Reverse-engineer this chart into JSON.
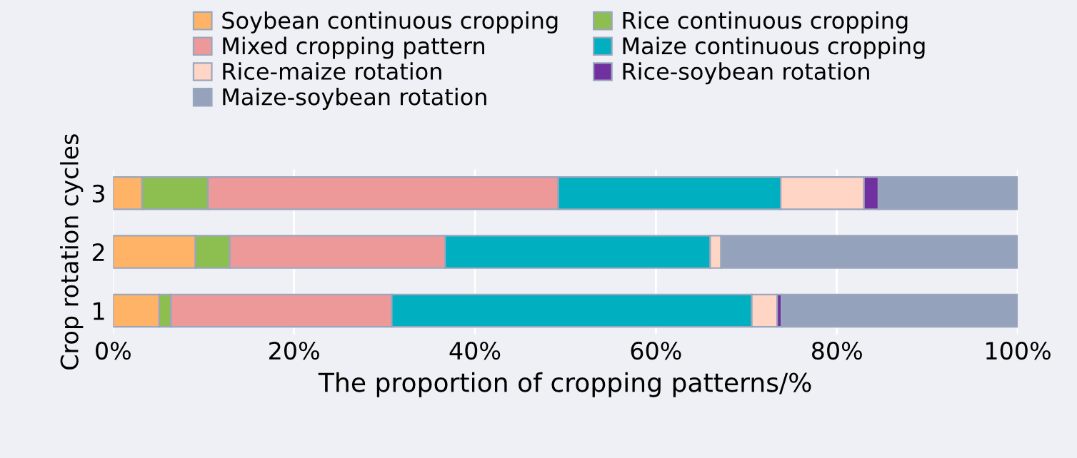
{
  "chart_data": {
    "type": "bar",
    "orientation": "horizontal",
    "stacked": true,
    "categories": [
      "3",
      "2",
      "1"
    ],
    "series": [
      {
        "name": "Soybean continuous cropping",
        "color": "#ffb366",
        "values": [
          3.2,
          9.1,
          5.1
        ]
      },
      {
        "name": "Rice continuous cropping",
        "color": "#8cbf50",
        "values": [
          7.3,
          3.8,
          1.3
        ]
      },
      {
        "name": "Mixed cropping pattern",
        "color": "#ee9999",
        "values": [
          38.7,
          23.8,
          24.4
        ]
      },
      {
        "name": "Maize continuous cropping",
        "color": "#00b0c0",
        "values": [
          24.6,
          29.3,
          39.8
        ]
      },
      {
        "name": "Rice-maize rotation",
        "color": "#ffd5c5",
        "values": [
          9.2,
          1.2,
          2.8
        ]
      },
      {
        "name": "Rice-soybean rotation",
        "color": "#7030a0",
        "values": [
          1.6,
          null,
          0.5
        ]
      },
      {
        "name": "Maize-soybean rotation",
        "color": "#94a3bb",
        "values": [
          15.4,
          32.8,
          26.1
        ]
      }
    ],
    "xlim": [
      0,
      100
    ],
    "xticks": [
      {
        "value": 0,
        "label": "0%"
      },
      {
        "value": 20,
        "label": "20%"
      },
      {
        "value": 40,
        "label": "40%"
      },
      {
        "value": 60,
        "label": "60%"
      },
      {
        "value": 80,
        "label": "80%"
      },
      {
        "value": 100,
        "label": "100%"
      }
    ],
    "xlabel": "The proportion of cropping patterns/%",
    "ylabel": "Crop rotation cycles",
    "grid": "x",
    "legend": "top"
  }
}
